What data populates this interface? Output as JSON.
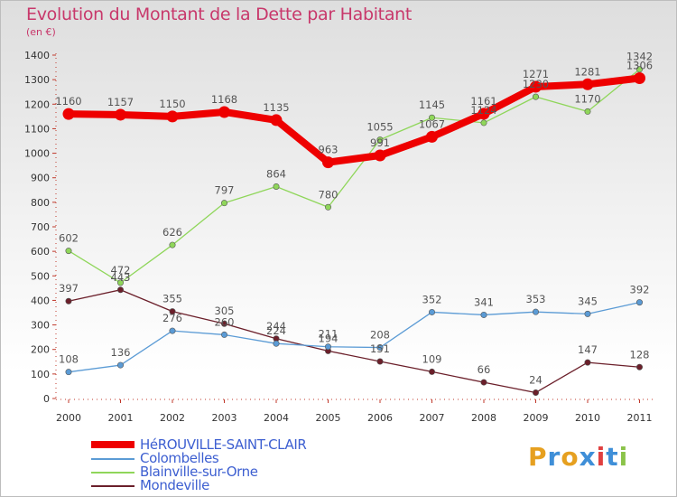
{
  "chart_data": {
    "type": "line",
    "title": "Evolution du Montant de la Dette par Habitant",
    "subtitle": "(en €)",
    "x": [
      "2000",
      "2001",
      "2002",
      "2003",
      "2004",
      "2005",
      "2006",
      "2007",
      "2008",
      "2009",
      "2010",
      "2011"
    ],
    "ylim": [
      0,
      1400
    ],
    "yticks": [
      0,
      100,
      200,
      300,
      400,
      500,
      600,
      700,
      800,
      900,
      1000,
      1100,
      1200,
      1300,
      1400
    ],
    "grid": false,
    "legend_position": "bottom-left",
    "series": [
      {
        "name": "HéROUVILLE-SAINT-CLAIR",
        "color": "#ee0000",
        "values": [
          1160,
          1157,
          1150,
          1168,
          1135,
          963,
          991,
          1067,
          1161,
          1271,
          1281,
          1306
        ]
      },
      {
        "name": "Colombelles",
        "color": "#5b9bd5",
        "values": [
          108,
          136,
          276,
          260,
          224,
          211,
          208,
          352,
          341,
          353,
          345,
          392
        ]
      },
      {
        "name": "Blainville-sur-Orne",
        "color": "#8fd65a",
        "values": [
          602,
          472,
          626,
          797,
          864,
          780,
          1055,
          1145,
          1124,
          1230,
          1170,
          1342
        ]
      },
      {
        "name": "Mondeville",
        "color": "#6b1f2a",
        "values": [
          397,
          443,
          355,
          305,
          244,
          194,
          151,
          109,
          66,
          24,
          147,
          128
        ]
      }
    ]
  },
  "brand": {
    "letters": [
      "P",
      "r",
      "o",
      "x",
      "i",
      "t",
      "i"
    ],
    "colors": [
      "#e6a020",
      "#3f8fd8",
      "#e6a020",
      "#3f8fd8",
      "#e04040",
      "#3f8fd8",
      "#8bc34a"
    ]
  }
}
